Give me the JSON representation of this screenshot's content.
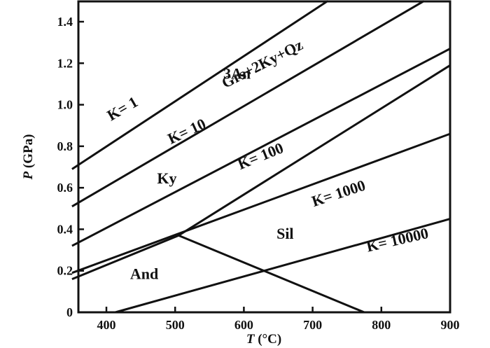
{
  "chart_data": {
    "type": "line",
    "xlabel_italic": "T",
    "xlabel_rest": " (°C)",
    "ylabel_italic": "P",
    "ylabel_rest": "  (GPa)",
    "xlim": [
      350,
      900
    ],
    "ylim": [
      0,
      1.5
    ],
    "xticks": [
      400,
      500,
      600,
      700,
      800,
      900
    ],
    "yticks": [
      0,
      0.2,
      0.4,
      0.6,
      0.8,
      1.0,
      1.2,
      1.4
    ],
    "ytick_labels": [
      "0",
      "0.2",
      "0.4",
      "0.6",
      "0.8",
      "1.0",
      "1.2",
      "1.4"
    ],
    "series": [
      {
        "label": "K= 1",
        "points": [
          [
            350,
            0.69
          ],
          [
            722,
            1.5
          ]
        ]
      },
      {
        "label": "K= 10",
        "points": [
          [
            350,
            0.51
          ],
          [
            862,
            1.5
          ]
        ]
      },
      {
        "label": "K= 100",
        "points": [
          [
            350,
            0.32
          ],
          [
            900,
            1.27
          ]
        ]
      },
      {
        "label": "K= 1000",
        "points": [
          [
            350,
            0.19
          ],
          [
            900,
            0.86
          ]
        ]
      },
      {
        "label": "K= 10000",
        "points": [
          [
            413,
            0.0
          ],
          [
            900,
            0.45
          ]
        ]
      },
      {
        "label": "",
        "points": [
          [
            350,
            0.16
          ],
          [
            505,
            0.37
          ],
          [
            900,
            1.19
          ]
        ]
      },
      {
        "label": "",
        "points": [
          [
            505,
            0.37
          ],
          [
            775,
            0.0
          ]
        ]
      }
    ],
    "annotations": [
      {
        "text": "K= 1",
        "x": 427,
        "y": 0.96,
        "rotate": -30
      },
      {
        "text": "K= 10",
        "x": 520,
        "y": 0.85,
        "rotate": -25
      },
      {
        "text": "K= 100",
        "x": 627,
        "y": 0.73,
        "rotate": -22
      },
      {
        "text": "K= 1000",
        "x": 740,
        "y": 0.55,
        "rotate": -18
      },
      {
        "text": "K= 10000",
        "x": 825,
        "y": 0.325,
        "rotate": -13
      },
      {
        "text": "Grs+2Ky+Qz",
        "x": 630,
        "y": 1.175,
        "rotate": -27
      },
      {
        "text": "3An",
        "x": 590,
        "y": 1.125,
        "rotate": 0
      },
      {
        "text": "Ky",
        "x": 488,
        "y": 0.62,
        "rotate": 0
      },
      {
        "text": "Sil",
        "x": 660,
        "y": 0.355,
        "rotate": 0
      },
      {
        "text": "And",
        "x": 455,
        "y": 0.16,
        "rotate": 0
      }
    ]
  }
}
